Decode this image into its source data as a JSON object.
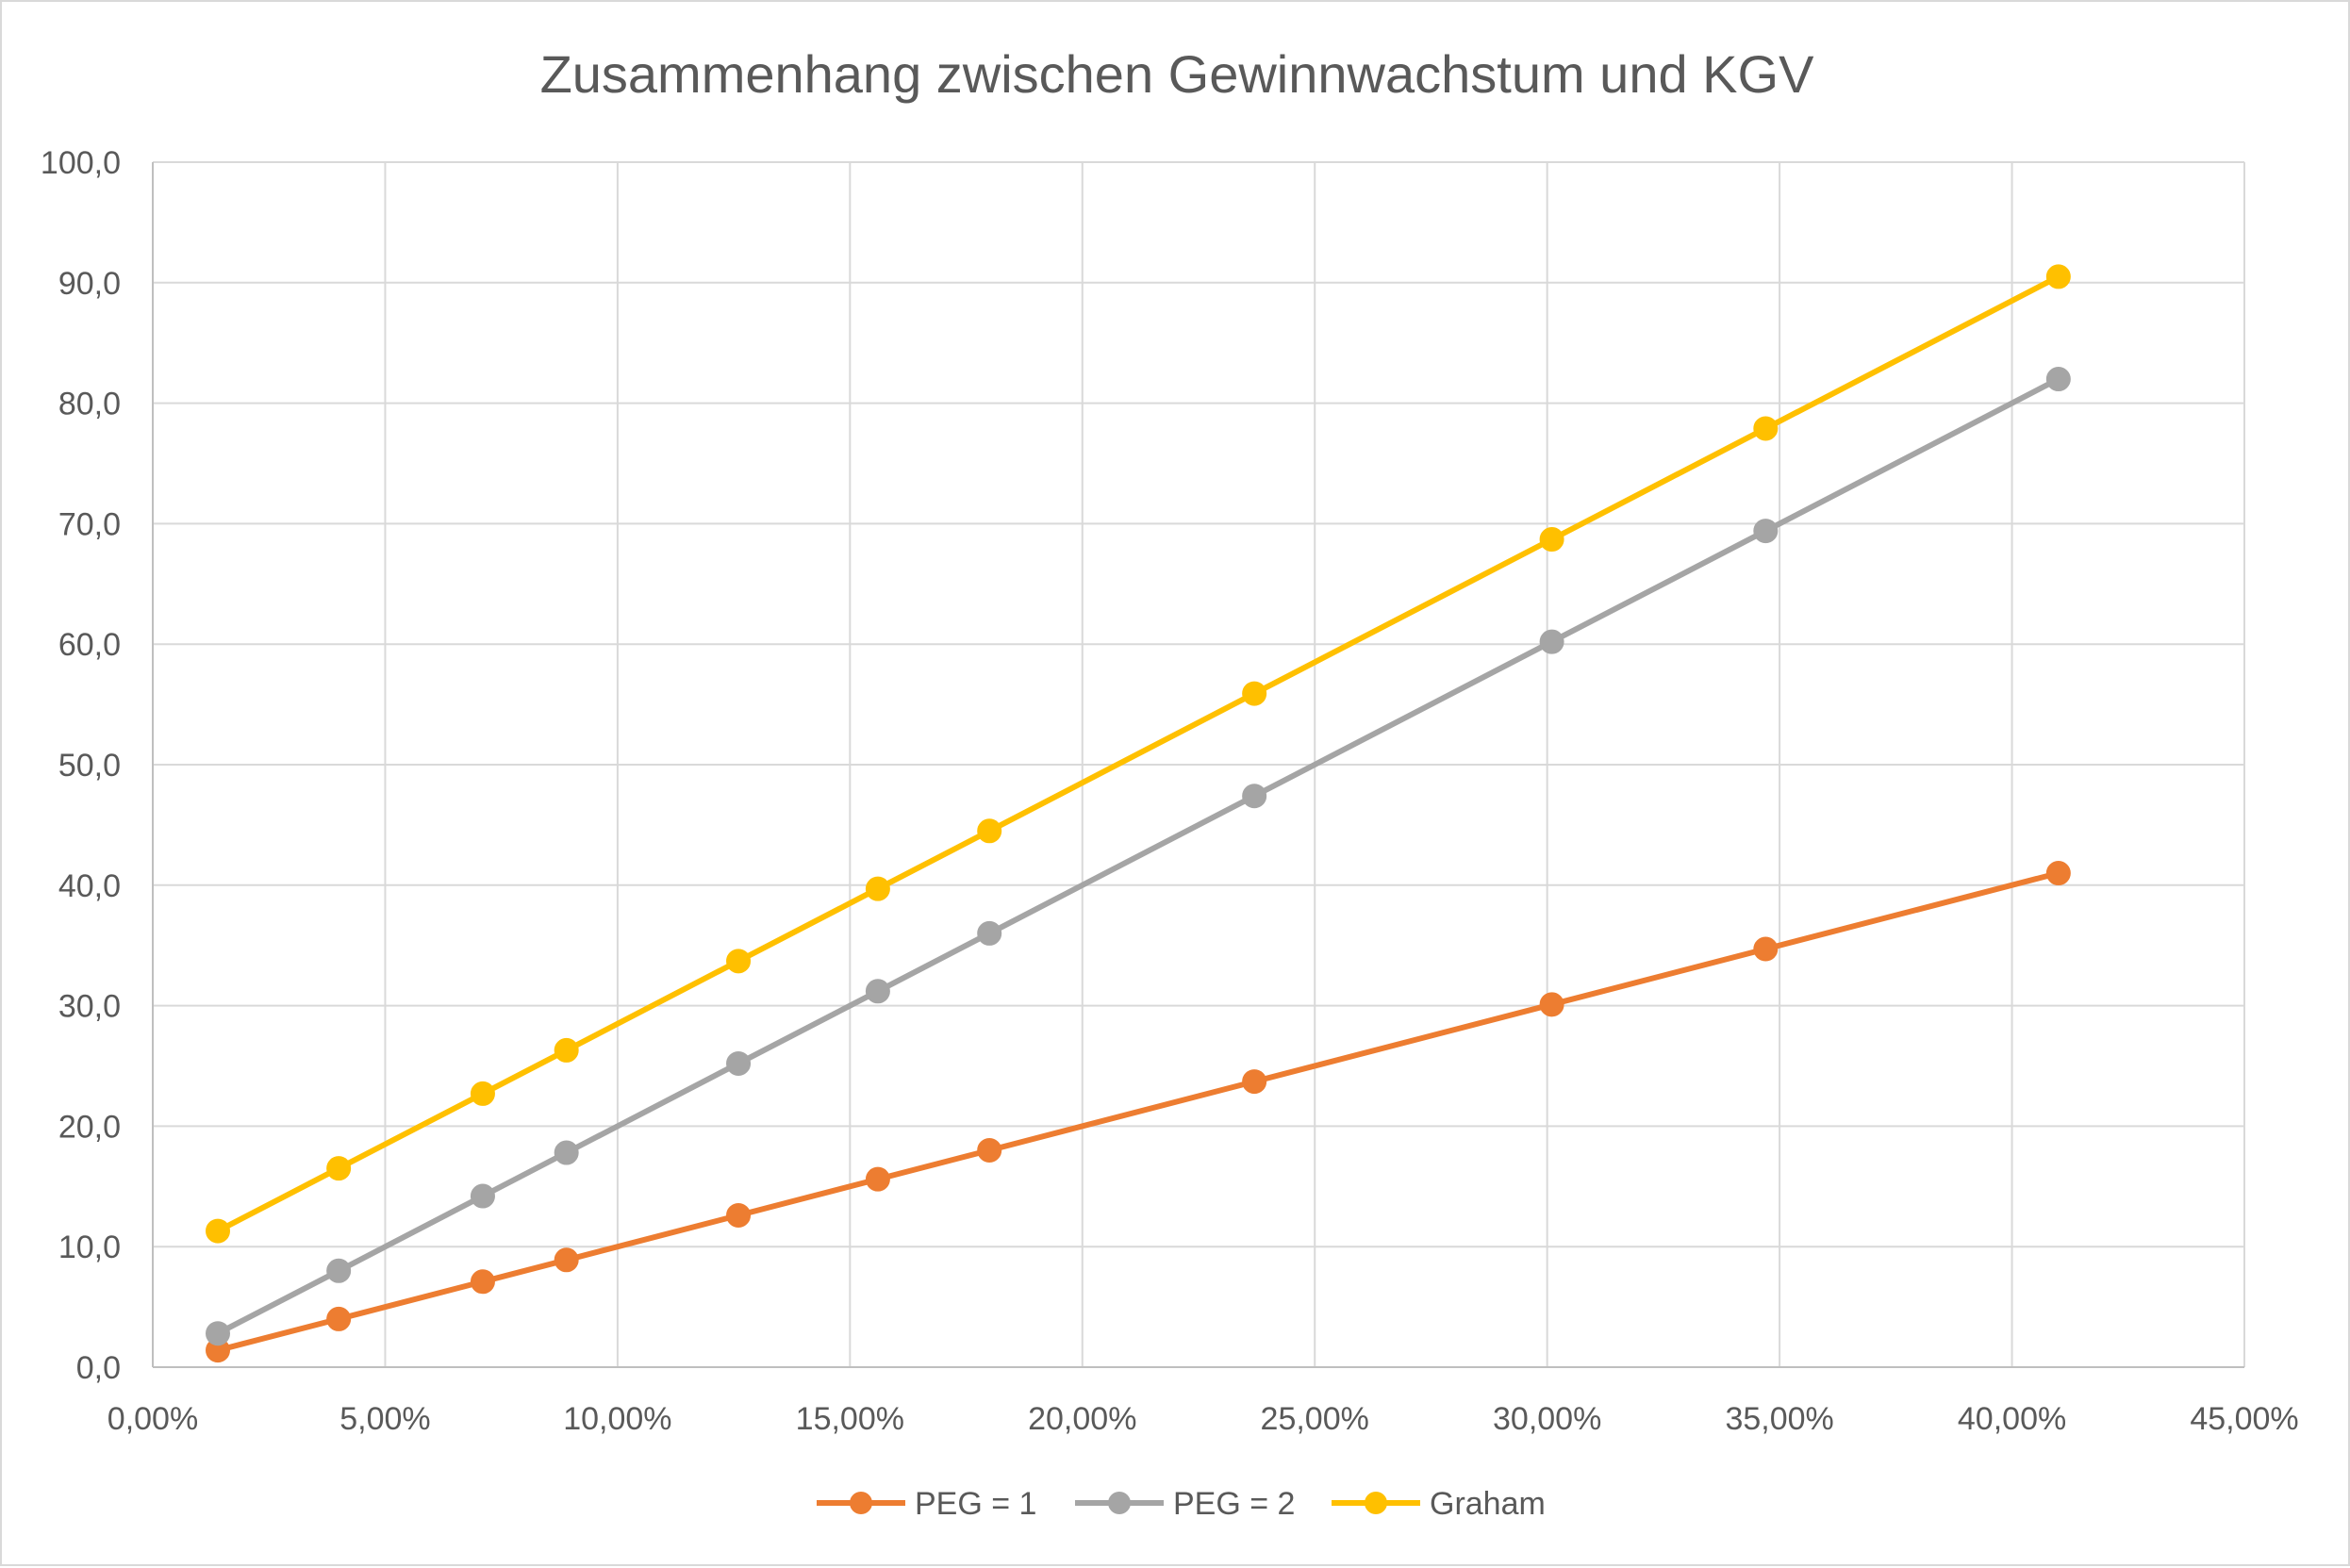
{
  "chart_data": {
    "type": "line",
    "title": "Zusammenhang zwischen Gewinnwachstum und KGV",
    "xlabel": "",
    "ylabel": "",
    "xlim": [
      0,
      45
    ],
    "ylim": [
      0,
      100
    ],
    "x_ticks": [
      0,
      5,
      10,
      15,
      20,
      25,
      30,
      35,
      40,
      45
    ],
    "x_tick_labels": [
      "0,00%",
      "5,00%",
      "10,00%",
      "15,00%",
      "20,00%",
      "25,00%",
      "30,00%",
      "35,00%",
      "40,00%",
      "45,00%"
    ],
    "y_ticks": [
      0,
      10,
      20,
      30,
      40,
      50,
      60,
      70,
      80,
      90,
      100
    ],
    "y_tick_labels": [
      "0,0",
      "10,0",
      "20,0",
      "30,0",
      "40,0",
      "50,0",
      "60,0",
      "70,0",
      "80,0",
      "90,0",
      "100,0"
    ],
    "grid": true,
    "legend_position": "bottom",
    "x": [
      1.4,
      4.0,
      7.1,
      8.9,
      12.6,
      15.6,
      18.0,
      23.7,
      30.1,
      34.7,
      41.0
    ],
    "series": [
      {
        "name": "PEG = 1",
        "color": "#ED7D31",
        "values": [
          1.4,
          4.0,
          7.1,
          8.9,
          12.6,
          15.6,
          18.0,
          23.7,
          30.1,
          34.7,
          41.0
        ]
      },
      {
        "name": "PEG = 2",
        "color": "#A5A5A5",
        "values": [
          2.8,
          8.0,
          14.2,
          17.8,
          25.2,
          31.2,
          36.0,
          47.4,
          60.2,
          69.4,
          82.0
        ]
      },
      {
        "name": "Graham",
        "color": "#FFC000",
        "values": [
          11.3,
          16.5,
          22.7,
          26.3,
          33.7,
          39.7,
          44.5,
          55.9,
          68.7,
          77.9,
          90.5
        ]
      }
    ]
  }
}
